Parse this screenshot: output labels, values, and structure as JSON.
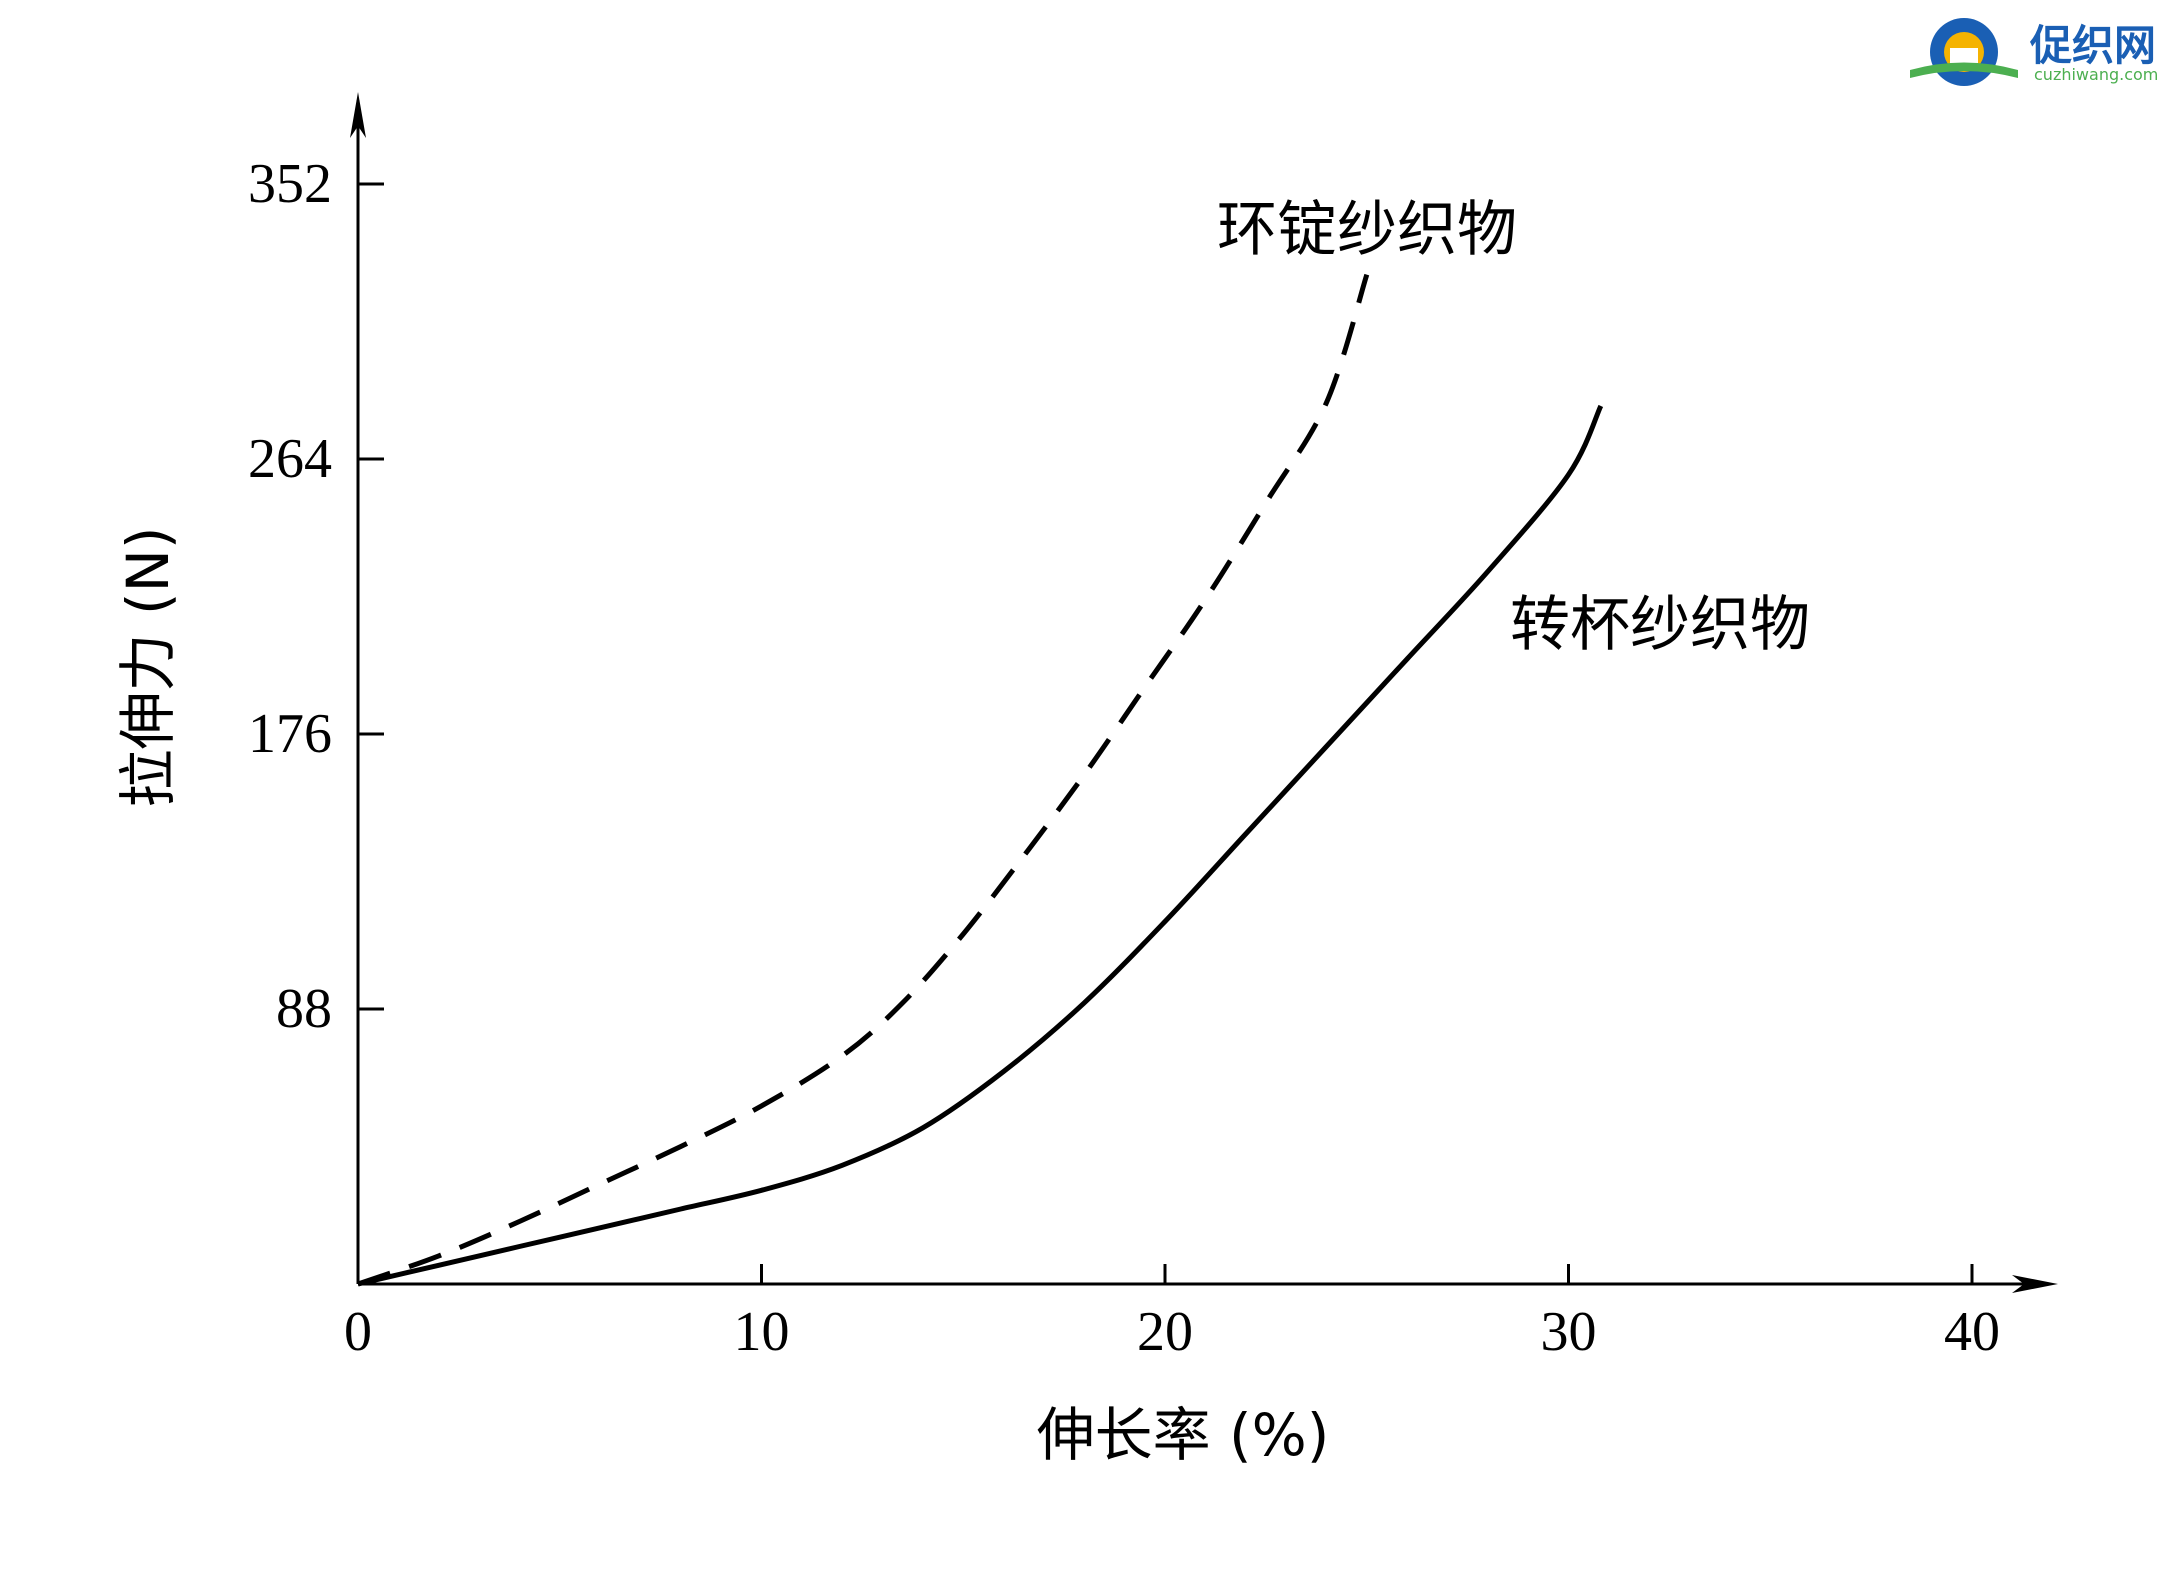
{
  "chart_data": {
    "type": "line",
    "title": "",
    "xlabel": "伸长率 (%)",
    "ylabel": "拉伸力 (N)",
    "xlim": [
      0,
      40
    ],
    "ylim": [
      0,
      352
    ],
    "xticks": [
      0,
      10,
      20,
      30,
      40
    ],
    "xtick_labels": [
      "0",
      "10",
      "20",
      "30",
      "40"
    ],
    "yticks": [
      88,
      176,
      264,
      352
    ],
    "ytick_labels": [
      "88",
      "176",
      "264",
      "352"
    ],
    "grid": false,
    "legend": "none",
    "series": [
      {
        "name": "环锭纱织物",
        "style": "dashed",
        "color": "#000000",
        "x": [
          0,
          2,
          4,
          6,
          8,
          10,
          12,
          13.5,
          15,
          16.5,
          18,
          19.5,
          21,
          22.5,
          24,
          25
        ],
        "y": [
          0,
          9,
          20,
          32,
          44,
          57,
          73,
          90,
          112,
          137,
          163,
          191,
          219,
          250,
          282,
          323
        ]
      },
      {
        "name": "转杯纱织物",
        "style": "solid",
        "color": "#000000",
        "x": [
          0,
          2,
          4,
          6,
          8,
          10,
          12,
          14,
          16,
          18,
          20,
          22,
          24,
          26,
          28,
          30,
          30.8
        ],
        "y": [
          0,
          6,
          12,
          18,
          24,
          30,
          38,
          50,
          68,
          90,
          116,
          144,
          172,
          200,
          228,
          259,
          281
        ]
      }
    ],
    "annotations": [
      {
        "text": "环锭纱织物",
        "series": 0
      },
      {
        "text": "转杯纱织物",
        "series": 1
      }
    ]
  },
  "logo": {
    "name": "促织网",
    "domain": "cuzhiwang.com",
    "accent": "#1a5fb4",
    "gear_color": "#f5b301",
    "leaf_color": "#4caf50"
  }
}
